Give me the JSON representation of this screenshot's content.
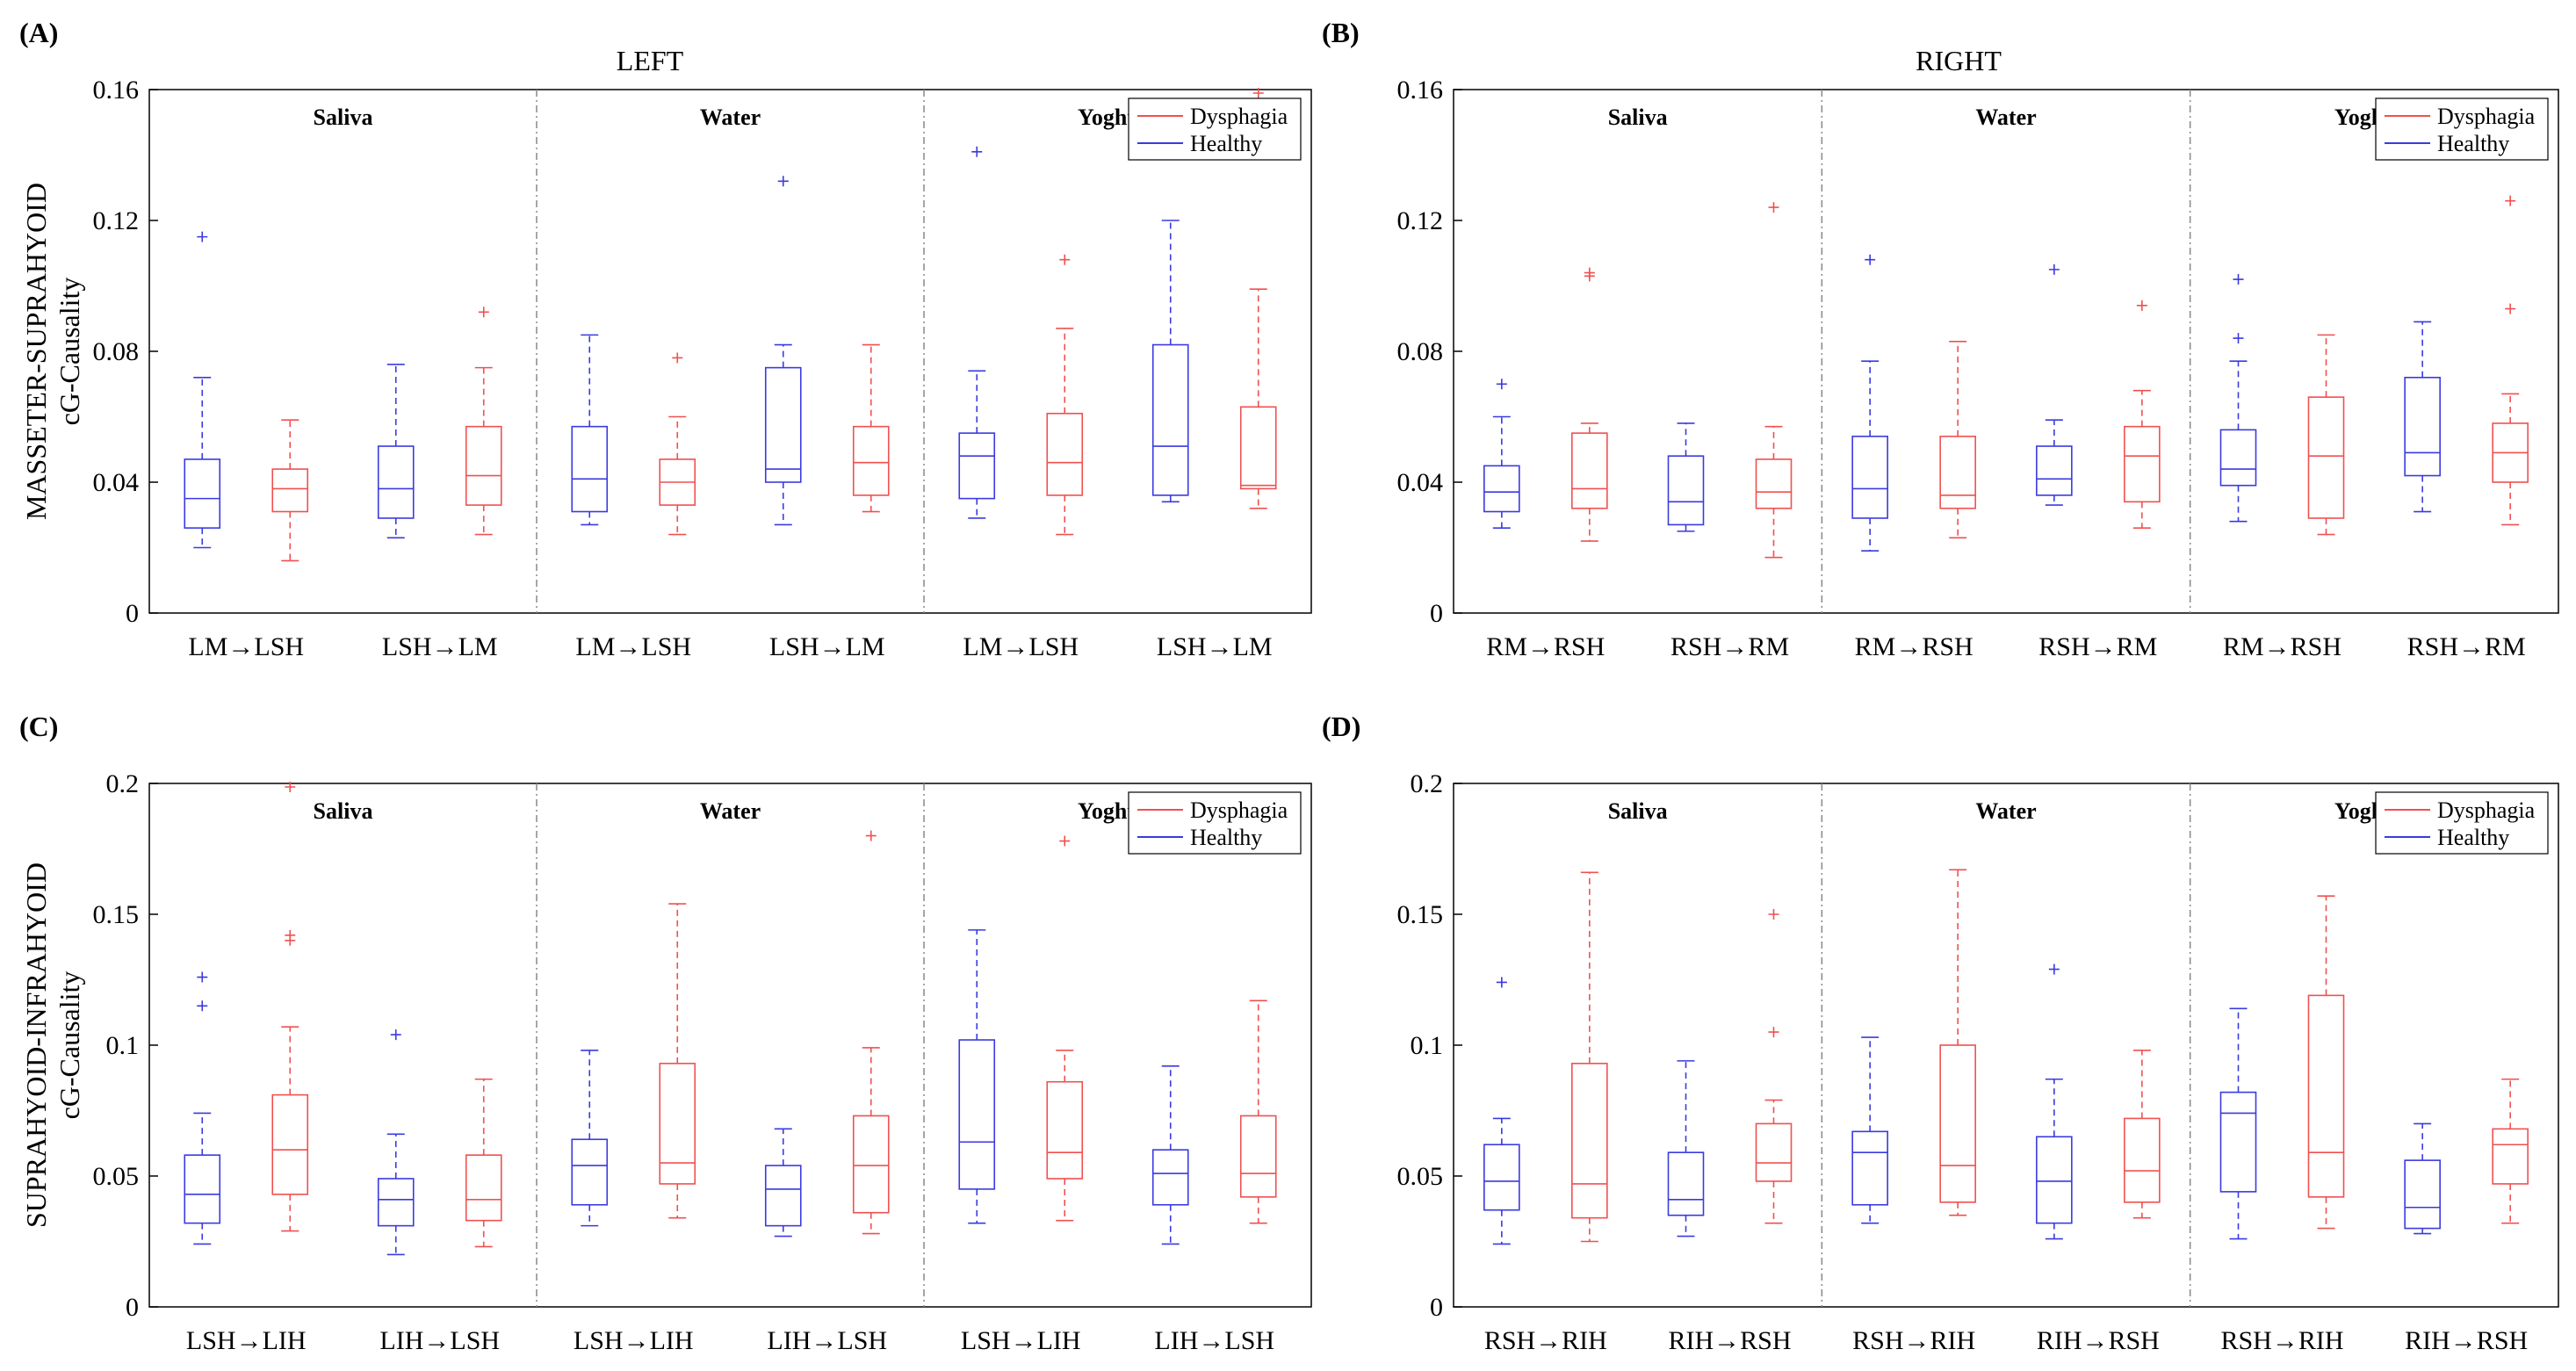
{
  "titles": {
    "left": "LEFT",
    "right": "RIGHT"
  },
  "row_labels": {
    "row1": {
      "line1": "MASSETER-SUPRAHYOID",
      "line2": "cG-Causality"
    },
    "row2": {
      "line1": "SUPRAHYOID-INFRAHYOID",
      "line2": "cG-Causality"
    }
  },
  "legend": {
    "dysphagia": "Dysphagia",
    "healthy": "Healthy"
  },
  "colors": {
    "dysphagia": "#f05050",
    "healthy": "#3a3ae0",
    "divider": "#888888"
  },
  "chart_data": [
    {
      "panel": "(A)",
      "type": "box",
      "ylim": [
        0,
        0.16
      ],
      "yticks": [
        0,
        0.04,
        0.08,
        0.12,
        0.16
      ],
      "ytick_labels": [
        "0",
        "0.04",
        "0.08",
        "0.12",
        "0.16"
      ],
      "groups": [
        "Saliva",
        "Water",
        "Yoghurt"
      ],
      "categories": [
        "LM→LSH",
        "LSH→LM",
        "LM→LSH",
        "LSH→LM",
        "LM→LSH",
        "LSH→LM"
      ],
      "series": [
        {
          "name": "Healthy",
          "boxes": [
            {
              "min": 0.02,
              "q1": 0.026,
              "med": 0.035,
              "q3": 0.047,
              "max": 0.072,
              "out": [
                0.115
              ]
            },
            {
              "min": 0.023,
              "q1": 0.029,
              "med": 0.038,
              "q3": 0.051,
              "max": 0.076,
              "out": []
            },
            {
              "min": 0.027,
              "q1": 0.031,
              "med": 0.041,
              "q3": 0.057,
              "max": 0.085,
              "out": []
            },
            {
              "min": 0.027,
              "q1": 0.04,
              "med": 0.044,
              "q3": 0.075,
              "max": 0.082,
              "out": [
                0.132
              ]
            },
            {
              "min": 0.029,
              "q1": 0.035,
              "med": 0.048,
              "q3": 0.055,
              "max": 0.074,
              "out": [
                0.141
              ]
            },
            {
              "min": 0.034,
              "q1": 0.036,
              "med": 0.051,
              "q3": 0.082,
              "max": 0.12,
              "out": []
            }
          ]
        },
        {
          "name": "Dysphagia",
          "boxes": [
            {
              "min": 0.016,
              "q1": 0.031,
              "med": 0.038,
              "q3": 0.044,
              "max": 0.059,
              "out": []
            },
            {
              "min": 0.024,
              "q1": 0.033,
              "med": 0.042,
              "q3": 0.057,
              "max": 0.075,
              "out": [
                0.092
              ]
            },
            {
              "min": 0.024,
              "q1": 0.033,
              "med": 0.04,
              "q3": 0.047,
              "max": 0.06,
              "out": [
                0.078
              ]
            },
            {
              "min": 0.031,
              "q1": 0.036,
              "med": 0.046,
              "q3": 0.057,
              "max": 0.082,
              "out": []
            },
            {
              "min": 0.024,
              "q1": 0.036,
              "med": 0.046,
              "q3": 0.061,
              "max": 0.087,
              "out": [
                0.108
              ]
            },
            {
              "min": 0.032,
              "q1": 0.038,
              "med": 0.039,
              "q3": 0.063,
              "max": 0.099,
              "out": [
                0.16
              ]
            }
          ]
        }
      ]
    },
    {
      "panel": "(B)",
      "type": "box",
      "ylim": [
        0,
        0.16
      ],
      "yticks": [
        0,
        0.04,
        0.08,
        0.12,
        0.16
      ],
      "ytick_labels": [
        "0",
        "0.04",
        "0.08",
        "0.12",
        "0.16"
      ],
      "groups": [
        "Saliva",
        "Water",
        "Yoghurt"
      ],
      "categories": [
        "RM→RSH",
        "RSH→RM",
        "RM→RSH",
        "RSH→RM",
        "RM→RSH",
        "RSH→RM"
      ],
      "series": [
        {
          "name": "Healthy",
          "boxes": [
            {
              "min": 0.026,
              "q1": 0.031,
              "med": 0.037,
              "q3": 0.045,
              "max": 0.06,
              "out": [
                0.07
              ]
            },
            {
              "min": 0.025,
              "q1": 0.027,
              "med": 0.034,
              "q3": 0.048,
              "max": 0.058,
              "out": []
            },
            {
              "min": 0.019,
              "q1": 0.029,
              "med": 0.038,
              "q3": 0.054,
              "max": 0.077,
              "out": [
                0.108
              ]
            },
            {
              "min": 0.033,
              "q1": 0.036,
              "med": 0.041,
              "q3": 0.051,
              "max": 0.059,
              "out": [
                0.105
              ]
            },
            {
              "min": 0.028,
              "q1": 0.039,
              "med": 0.044,
              "q3": 0.056,
              "max": 0.077,
              "out": [
                0.084,
                0.102
              ]
            },
            {
              "min": 0.031,
              "q1": 0.042,
              "med": 0.049,
              "q3": 0.072,
              "max": 0.089,
              "out": []
            }
          ]
        },
        {
          "name": "Dysphagia",
          "boxes": [
            {
              "min": 0.022,
              "q1": 0.032,
              "med": 0.038,
              "q3": 0.055,
              "max": 0.058,
              "out": [
                0.103,
                0.104
              ]
            },
            {
              "min": 0.017,
              "q1": 0.032,
              "med": 0.037,
              "q3": 0.047,
              "max": 0.057,
              "out": [
                0.124
              ]
            },
            {
              "min": 0.023,
              "q1": 0.032,
              "med": 0.036,
              "q3": 0.054,
              "max": 0.083,
              "out": []
            },
            {
              "min": 0.026,
              "q1": 0.034,
              "med": 0.048,
              "q3": 0.057,
              "max": 0.068,
              "out": [
                0.094
              ]
            },
            {
              "min": 0.024,
              "q1": 0.029,
              "med": 0.048,
              "q3": 0.066,
              "max": 0.085,
              "out": []
            },
            {
              "min": 0.027,
              "q1": 0.04,
              "med": 0.049,
              "q3": 0.058,
              "max": 0.067,
              "out": [
                0.093,
                0.126
              ]
            }
          ]
        }
      ]
    },
    {
      "panel": "(C)",
      "type": "box",
      "ylim": [
        0,
        0.2
      ],
      "yticks": [
        0,
        0.05,
        0.1,
        0.15,
        0.2
      ],
      "ytick_labels": [
        "0",
        "0.05",
        "0.1",
        "0.15",
        "0.2"
      ],
      "groups": [
        "Saliva",
        "Water",
        "Yoghurt"
      ],
      "categories": [
        "LSH→LIH",
        "LIH→LSH",
        "LSH→LIH",
        "LIH→LSH",
        "LSH→LIH",
        "LIH→LSH"
      ],
      "series": [
        {
          "name": "Healthy",
          "boxes": [
            {
              "min": 0.024,
              "q1": 0.032,
              "med": 0.043,
              "q3": 0.058,
              "max": 0.074,
              "out": [
                0.115,
                0.126
              ]
            },
            {
              "min": 0.02,
              "q1": 0.031,
              "med": 0.041,
              "q3": 0.049,
              "max": 0.066,
              "out": [
                0.104
              ]
            },
            {
              "min": 0.031,
              "q1": 0.039,
              "med": 0.054,
              "q3": 0.064,
              "max": 0.098,
              "out": []
            },
            {
              "min": 0.027,
              "q1": 0.031,
              "med": 0.045,
              "q3": 0.054,
              "max": 0.068,
              "out": []
            },
            {
              "min": 0.032,
              "q1": 0.045,
              "med": 0.063,
              "q3": 0.102,
              "max": 0.144,
              "out": []
            },
            {
              "min": 0.024,
              "q1": 0.039,
              "med": 0.051,
              "q3": 0.06,
              "max": 0.092,
              "out": []
            }
          ]
        },
        {
          "name": "Dysphagia",
          "boxes": [
            {
              "min": 0.029,
              "q1": 0.043,
              "med": 0.06,
              "q3": 0.081,
              "max": 0.107,
              "out": [
                0.14,
                0.142,
                0.2
              ]
            },
            {
              "min": 0.023,
              "q1": 0.033,
              "med": 0.041,
              "q3": 0.058,
              "max": 0.087,
              "out": []
            },
            {
              "min": 0.034,
              "q1": 0.047,
              "med": 0.055,
              "q3": 0.093,
              "max": 0.154,
              "out": []
            },
            {
              "min": 0.028,
              "q1": 0.036,
              "med": 0.054,
              "q3": 0.073,
              "max": 0.099,
              "out": [
                0.18
              ]
            },
            {
              "min": 0.033,
              "q1": 0.049,
              "med": 0.059,
              "q3": 0.086,
              "max": 0.098,
              "out": [
                0.178
              ]
            },
            {
              "min": 0.032,
              "q1": 0.042,
              "med": 0.051,
              "q3": 0.073,
              "max": 0.117,
              "out": []
            }
          ]
        }
      ]
    },
    {
      "panel": "(D)",
      "type": "box",
      "ylim": [
        0,
        0.2
      ],
      "yticks": [
        0,
        0.05,
        0.1,
        0.15,
        0.2
      ],
      "ytick_labels": [
        "0",
        "0.05",
        "0.1",
        "0.15",
        "0.2"
      ],
      "groups": [
        "Saliva",
        "Water",
        "Yoghurt"
      ],
      "categories": [
        "RSH→RIH",
        "RIH→RSH",
        "RSH→RIH",
        "RIH→RSH",
        "RSH→RIH",
        "RIH→RSH"
      ],
      "series": [
        {
          "name": "Healthy",
          "boxes": [
            {
              "min": 0.024,
              "q1": 0.037,
              "med": 0.048,
              "q3": 0.062,
              "max": 0.072,
              "out": [
                0.124
              ]
            },
            {
              "min": 0.027,
              "q1": 0.035,
              "med": 0.041,
              "q3": 0.059,
              "max": 0.094,
              "out": []
            },
            {
              "min": 0.032,
              "q1": 0.039,
              "med": 0.059,
              "q3": 0.067,
              "max": 0.103,
              "out": []
            },
            {
              "min": 0.026,
              "q1": 0.032,
              "med": 0.048,
              "q3": 0.065,
              "max": 0.087,
              "out": [
                0.129
              ]
            },
            {
              "min": 0.026,
              "q1": 0.044,
              "med": 0.074,
              "q3": 0.082,
              "max": 0.114,
              "out": []
            },
            {
              "min": 0.028,
              "q1": 0.03,
              "med": 0.038,
              "q3": 0.056,
              "max": 0.07,
              "out": []
            }
          ]
        },
        {
          "name": "Dysphagia",
          "boxes": [
            {
              "min": 0.025,
              "q1": 0.034,
              "med": 0.047,
              "q3": 0.093,
              "max": 0.166,
              "out": []
            },
            {
              "min": 0.032,
              "q1": 0.048,
              "med": 0.055,
              "q3": 0.07,
              "max": 0.079,
              "out": [
                0.105,
                0.15
              ]
            },
            {
              "min": 0.035,
              "q1": 0.04,
              "med": 0.054,
              "q3": 0.1,
              "max": 0.167,
              "out": []
            },
            {
              "min": 0.034,
              "q1": 0.04,
              "med": 0.052,
              "q3": 0.072,
              "max": 0.098,
              "out": []
            },
            {
              "min": 0.03,
              "q1": 0.042,
              "med": 0.059,
              "q3": 0.119,
              "max": 0.157,
              "out": []
            },
            {
              "min": 0.032,
              "q1": 0.047,
              "med": 0.062,
              "q3": 0.068,
              "max": 0.087,
              "out": []
            }
          ]
        }
      ]
    }
  ]
}
